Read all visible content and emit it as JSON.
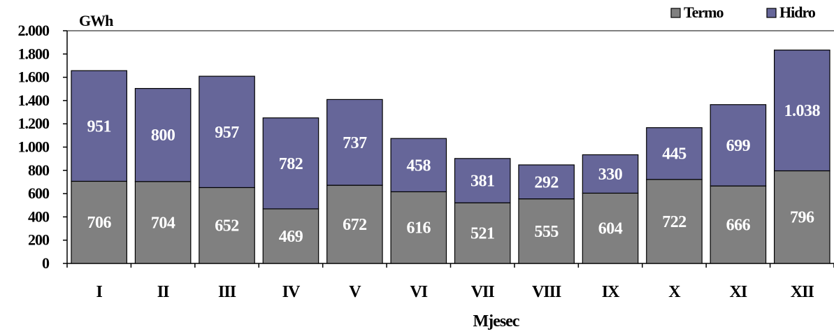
{
  "chart_data": {
    "type": "bar",
    "stacked": true,
    "unit_label": "GWh",
    "xlabel": "Mjesec",
    "ylabel": "",
    "ylim": [
      0,
      2000
    ],
    "yticks": [
      0,
      200,
      400,
      600,
      800,
      1000,
      1200,
      1400,
      1600,
      1800,
      2000
    ],
    "ytick_labels": [
      "0",
      "200",
      "400",
      "600",
      "800",
      "1.000",
      "1.200",
      "1.400",
      "1.600",
      "1.800",
      "2.000"
    ],
    "categories": [
      "I",
      "II",
      "III",
      "IV",
      "V",
      "VI",
      "VII",
      "VIII",
      "IX",
      "X",
      "XI",
      "XII"
    ],
    "series": [
      {
        "name": "Termo",
        "color": "#808080",
        "values": [
          706,
          704,
          652,
          469,
          672,
          616,
          521,
          555,
          604,
          722,
          666,
          796
        ],
        "labels": [
          "706",
          "704",
          "652",
          "469",
          "672",
          "616",
          "521",
          "555",
          "604",
          "722",
          "666",
          "796"
        ]
      },
      {
        "name": "Hidro",
        "color": "#666699",
        "values": [
          951,
          800,
          957,
          782,
          737,
          458,
          381,
          292,
          330,
          445,
          699,
          1038
        ],
        "labels": [
          "951",
          "800",
          "957",
          "782",
          "737",
          "458",
          "381",
          "292",
          "330",
          "445",
          "699",
          "1.038"
        ]
      }
    ],
    "legend": {
      "position": "top-right"
    },
    "grid": false
  }
}
